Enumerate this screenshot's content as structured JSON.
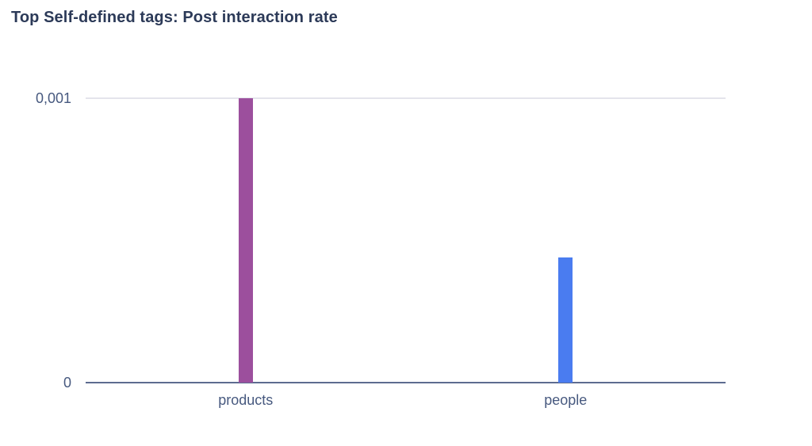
{
  "chart_data": {
    "type": "bar",
    "title": "Top Self-defined tags: Post interaction rate",
    "categories": [
      "products",
      "people"
    ],
    "values": [
      0.001,
      0.00044
    ],
    "bar_colors": [
      "#9c4f9d",
      "#4a7cf0"
    ],
    "ylim": [
      0,
      0.001
    ],
    "yticks": [
      {
        "label": "0,001",
        "value": 0.001
      },
      {
        "label": "0",
        "value": 0
      }
    ],
    "xlabel": "",
    "ylabel": "",
    "legend": "none",
    "grid": "single horizontal gridline at top tick",
    "number_format": "comma-decimal"
  },
  "colors": {
    "title_text": "#2c3a58",
    "tick_text": "#47597f",
    "gridline": "#e4e4ec",
    "axis_line": "#5d6c90",
    "background": "#ffffff"
  }
}
